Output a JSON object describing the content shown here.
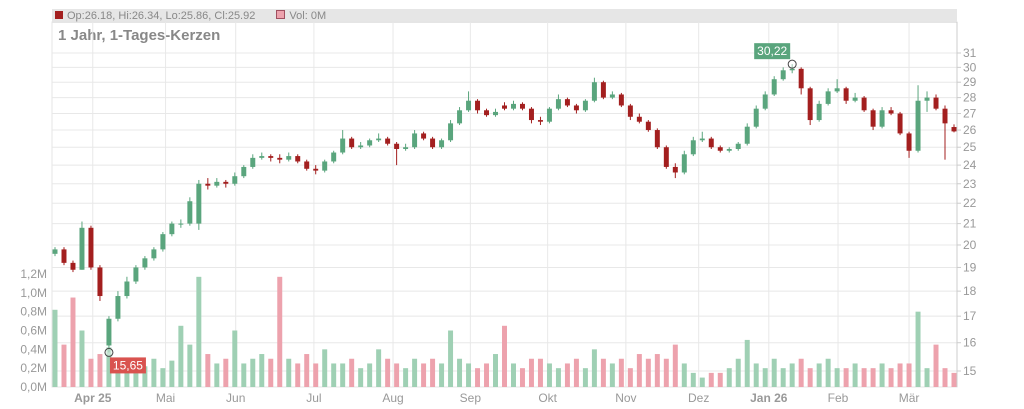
{
  "legend": {
    "ohlc_label": "Op:26.18, Hi:26.34, Lo:25.86, Cl:25.92",
    "volume_label": "Vol: 0M"
  },
  "colors": {
    "up": "#5aa57d",
    "down": "#a31f1f",
    "up_volume": "#9fd0b4",
    "down_volume": "#eda2ad",
    "high_badge": "#5aa57d",
    "low_badge": "#d9534f"
  },
  "chart_data": {
    "type": "candlestick",
    "title": "1 Jahr, 1-Tages-Kerzen",
    "price_axis": {
      "scale": "log",
      "ticks": [
        15,
        16,
        17,
        18,
        19,
        20,
        21,
        22,
        23,
        24,
        25,
        26,
        27,
        28,
        29,
        30,
        31
      ],
      "position": "right"
    },
    "volume_axis": {
      "ticks": [
        "0,0M",
        "0,2M",
        "0,4M",
        "0,6M",
        "0,8M",
        "1,0M",
        "1,2M"
      ],
      "max": 1.2,
      "position": "left"
    },
    "x_ticks": [
      {
        "label": "Apr 25",
        "index": 4.2,
        "bold": true
      },
      {
        "label": "Mai",
        "index": 12.3,
        "bold": false
      },
      {
        "label": "Jun",
        "index": 20.1,
        "bold": false
      },
      {
        "label": "Jul",
        "index": 28.8,
        "bold": false
      },
      {
        "label": "Aug",
        "index": 37.6,
        "bold": false
      },
      {
        "label": "Sep",
        "index": 46.2,
        "bold": false
      },
      {
        "label": "Okt",
        "index": 54.8,
        "bold": false
      },
      {
        "label": "Nov",
        "index": 63.5,
        "bold": false
      },
      {
        "label": "Dez",
        "index": 71.6,
        "bold": false
      },
      {
        "label": "Jan 26",
        "index": 79.4,
        "bold": true
      },
      {
        "label": "Feb",
        "index": 87.1,
        "bold": false
      },
      {
        "label": "Mär",
        "index": 95.0,
        "bold": false
      }
    ],
    "grid": true,
    "annotations": {
      "high": {
        "label": "30,22",
        "index": 82,
        "value": 30.22
      },
      "low": {
        "label": "15,65",
        "index": 6,
        "value": 15.65
      }
    },
    "candle_fields": [
      "open",
      "high",
      "low",
      "close",
      "volume_M"
    ],
    "candles": [
      [
        19.6,
        19.9,
        19.5,
        19.8,
        0.82
      ],
      [
        19.8,
        19.9,
        19.1,
        19.2,
        0.45
      ],
      [
        19.2,
        19.3,
        18.8,
        18.9,
        0.95
      ],
      [
        18.9,
        21.1,
        18.9,
        20.8,
        0.6
      ],
      [
        20.8,
        20.9,
        18.9,
        19.0,
        0.3
      ],
      [
        19.0,
        19.1,
        17.6,
        17.8,
        0.35
      ],
      [
        15.9,
        17.0,
        15.65,
        16.9,
        0.42
      ],
      [
        16.9,
        18.0,
        16.8,
        17.8,
        0.3
      ],
      [
        17.8,
        18.6,
        17.7,
        18.4,
        0.2
      ],
      [
        18.4,
        19.1,
        18.3,
        19.0,
        0.2
      ],
      [
        19.0,
        19.5,
        18.9,
        19.4,
        0.22
      ],
      [
        19.4,
        19.9,
        19.3,
        19.8,
        0.3
      ],
      [
        19.8,
        20.6,
        19.7,
        20.5,
        0.2
      ],
      [
        20.5,
        21.1,
        20.4,
        21.0,
        0.28
      ],
      [
        21.0,
        21.2,
        20.8,
        21.0,
        0.65
      ],
      [
        21.0,
        22.3,
        20.9,
        22.1,
        0.45
      ],
      [
        21.0,
        23.2,
        20.7,
        23.0,
        1.17
      ],
      [
        23.0,
        23.3,
        22.7,
        22.9,
        0.35
      ],
      [
        22.9,
        23.3,
        22.8,
        23.1,
        0.25
      ],
      [
        23.1,
        23.2,
        22.8,
        23.0,
        0.3
      ],
      [
        23.0,
        23.6,
        22.9,
        23.4,
        0.6
      ],
      [
        23.4,
        24.0,
        23.3,
        23.9,
        0.25
      ],
      [
        23.9,
        24.6,
        23.8,
        24.4,
        0.3
      ],
      [
        24.4,
        24.7,
        24.3,
        24.5,
        0.35
      ],
      [
        24.5,
        24.6,
        24.2,
        24.4,
        0.3
      ],
      [
        24.4,
        24.6,
        24.1,
        24.3,
        1.17
      ],
      [
        24.3,
        24.7,
        24.2,
        24.5,
        0.3
      ],
      [
        24.5,
        24.6,
        24.1,
        24.2,
        0.25
      ],
      [
        24.2,
        24.3,
        23.7,
        23.8,
        0.35
      ],
      [
        23.8,
        24.0,
        23.5,
        23.7,
        0.25
      ],
      [
        23.7,
        24.3,
        23.6,
        24.2,
        0.4
      ],
      [
        24.2,
        24.8,
        24.1,
        24.7,
        0.25
      ],
      [
        24.7,
        26.0,
        24.6,
        25.5,
        0.25
      ],
      [
        25.5,
        25.6,
        24.9,
        25.0,
        0.3
      ],
      [
        25.0,
        25.3,
        24.9,
        25.1,
        0.2
      ],
      [
        25.1,
        25.5,
        25.0,
        25.4,
        0.25
      ],
      [
        25.4,
        25.8,
        25.3,
        25.5,
        0.4
      ],
      [
        25.5,
        25.6,
        25.1,
        25.2,
        0.3
      ],
      [
        25.2,
        25.3,
        24.0,
        24.9,
        0.25
      ],
      [
        24.9,
        25.2,
        24.8,
        25.0,
        0.2
      ],
      [
        25.0,
        26.0,
        24.9,
        25.8,
        0.3
      ],
      [
        25.8,
        25.9,
        25.4,
        25.5,
        0.25
      ],
      [
        25.5,
        25.6,
        24.9,
        25.0,
        0.3
      ],
      [
        25.0,
        25.5,
        24.9,
        25.4,
        0.25
      ],
      [
        25.4,
        26.6,
        25.3,
        26.4,
        0.6
      ],
      [
        26.4,
        27.4,
        26.3,
        27.2,
        0.3
      ],
      [
        27.2,
        28.4,
        27.1,
        27.8,
        0.25
      ],
      [
        27.8,
        27.9,
        27.0,
        27.2,
        0.2
      ],
      [
        27.2,
        27.3,
        26.8,
        26.9,
        0.25
      ],
      [
        26.9,
        27.3,
        26.8,
        27.1,
        0.35
      ],
      [
        27.5,
        27.7,
        27.2,
        27.3,
        0.65
      ],
      [
        27.3,
        27.8,
        27.2,
        27.6,
        0.25
      ],
      [
        27.6,
        27.7,
        27.2,
        27.3,
        0.2
      ],
      [
        27.3,
        27.4,
        26.4,
        26.6,
        0.3
      ],
      [
        26.6,
        26.8,
        26.3,
        26.5,
        0.3
      ],
      [
        26.5,
        27.4,
        26.4,
        27.3,
        0.25
      ],
      [
        27.3,
        28.2,
        27.2,
        27.9,
        0.2
      ],
      [
        27.9,
        28.0,
        27.4,
        27.5,
        0.25
      ],
      [
        27.5,
        27.6,
        27.0,
        27.2,
        0.3
      ],
      [
        27.2,
        27.9,
        27.1,
        27.8,
        0.2
      ],
      [
        27.8,
        29.3,
        27.7,
        29.0,
        0.4
      ],
      [
        29.0,
        29.1,
        27.9,
        28.0,
        0.3
      ],
      [
        28.0,
        28.4,
        27.9,
        28.2,
        0.25
      ],
      [
        28.2,
        28.3,
        27.4,
        27.5,
        0.3
      ],
      [
        27.5,
        27.6,
        26.6,
        26.8,
        0.2
      ],
      [
        26.8,
        27.0,
        26.4,
        26.5,
        0.35
      ],
      [
        26.5,
        26.6,
        25.9,
        26.0,
        0.3
      ],
      [
        26.0,
        26.1,
        24.9,
        25.0,
        0.35
      ],
      [
        25.0,
        25.1,
        23.8,
        23.9,
        0.3
      ],
      [
        23.9,
        24.1,
        23.3,
        23.6,
        0.45
      ],
      [
        23.6,
        24.8,
        23.5,
        24.6,
        0.25
      ],
      [
        24.6,
        25.6,
        24.5,
        25.4,
        0.15
      ],
      [
        25.4,
        25.9,
        25.3,
        25.5,
        0.1
      ],
      [
        25.5,
        25.6,
        24.9,
        25.0,
        0.15
      ],
      [
        25.0,
        25.1,
        24.7,
        24.8,
        0.15
      ],
      [
        24.8,
        25.0,
        24.7,
        24.9,
        0.2
      ],
      [
        24.9,
        25.3,
        24.8,
        25.2,
        0.3
      ],
      [
        25.2,
        26.4,
        25.1,
        26.2,
        0.5
      ],
      [
        26.2,
        27.5,
        26.1,
        27.3,
        0.25
      ],
      [
        27.3,
        28.4,
        27.2,
        28.2,
        0.2
      ],
      [
        28.2,
        29.4,
        28.1,
        29.2,
        0.3
      ],
      [
        29.2,
        30.0,
        29.1,
        29.8,
        0.2
      ],
      [
        29.8,
        30.22,
        29.6,
        29.9,
        0.25
      ],
      [
        29.9,
        30.0,
        28.2,
        28.6,
        0.3
      ],
      [
        28.6,
        28.7,
        26.3,
        26.6,
        0.2
      ],
      [
        26.6,
        27.8,
        26.5,
        27.6,
        0.25
      ],
      [
        27.6,
        28.6,
        27.5,
        28.4,
        0.3
      ],
      [
        28.4,
        29.2,
        28.3,
        28.6,
        0.2
      ],
      [
        28.6,
        28.7,
        27.6,
        27.8,
        0.2
      ],
      [
        27.8,
        28.3,
        27.7,
        28.0,
        0.25
      ],
      [
        28.0,
        28.1,
        27.1,
        27.2,
        0.2
      ],
      [
        27.2,
        27.3,
        26.0,
        26.2,
        0.2
      ],
      [
        26.2,
        27.4,
        26.1,
        27.2,
        0.25
      ],
      [
        27.2,
        27.4,
        26.9,
        27.0,
        0.2
      ],
      [
        27.0,
        27.1,
        25.7,
        25.8,
        0.25
      ],
      [
        25.8,
        25.9,
        24.4,
        24.8,
        0.25
      ],
      [
        24.8,
        28.8,
        24.7,
        27.8,
        0.8
      ],
      [
        27.8,
        28.4,
        27.1,
        28.0,
        0.2
      ],
      [
        28.0,
        28.2,
        27.2,
        27.3,
        0.45
      ],
      [
        27.3,
        27.5,
        24.3,
        26.4,
        0.2
      ],
      [
        26.18,
        26.34,
        25.86,
        25.92,
        0.15
      ]
    ]
  }
}
